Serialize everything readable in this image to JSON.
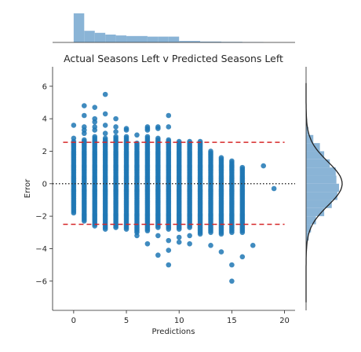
{
  "chart_data": {
    "type": "scatter",
    "title": "Actual Seasons Left v Predicted Seasons Left",
    "xlabel": "Predictions",
    "ylabel": "Error",
    "xlim": [
      -2,
      21
    ],
    "ylim": [
      -7.8,
      7.2
    ],
    "x_ticks": [
      "0",
      "5",
      "10",
      "15",
      "20"
    ],
    "y_ticks": [
      "−6",
      "−4",
      "−2",
      "0",
      "2",
      "4",
      "6"
    ],
    "colors": {
      "points": "#1f77b4",
      "hist": "#8ab4d6",
      "band": "#d62728",
      "zero": "#333333",
      "kde": "#222222"
    },
    "reference_lines": {
      "upper": 2.55,
      "zero": 0,
      "lower": -2.5
    },
    "columns": [
      {
        "x": 0,
        "range": [
          -1.8,
          2.6
        ],
        "outliers": [
          3.6,
          2.8
        ]
      },
      {
        "x": 1,
        "range": [
          -2.3,
          2.7
        ],
        "outliers": [
          4.8,
          4.2,
          3.5,
          3.3,
          3.1
        ]
      },
      {
        "x": 2,
        "range": [
          -2.6,
          2.9
        ],
        "outliers": [
          4.7,
          4.0,
          3.8,
          3.5,
          3.3
        ]
      },
      {
        "x": 3,
        "range": [
          -2.8,
          2.8
        ],
        "outliers": [
          5.5,
          4.3,
          3.6,
          3.1
        ]
      },
      {
        "x": 4,
        "range": [
          -2.7,
          2.9
        ],
        "outliers": [
          4.0,
          3.5,
          3.2
        ]
      },
      {
        "x": 5,
        "range": [
          -2.8,
          2.9
        ],
        "outliers": [
          3.4,
          3.3
        ]
      },
      {
        "x": 6,
        "range": [
          -2.9,
          2.5
        ],
        "outliers": [
          3.0,
          -3.0,
          -3.2
        ]
      },
      {
        "x": 7,
        "range": [
          -2.9,
          2.9
        ],
        "outliers": [
          3.5,
          3.4,
          3.3,
          -3.7
        ]
      },
      {
        "x": 8,
        "range": [
          -2.7,
          2.8
        ],
        "outliers": [
          3.5,
          3.4,
          -3.2,
          -4.4
        ]
      },
      {
        "x": 9,
        "range": [
          -2.8,
          2.7
        ],
        "outliers": [
          4.2,
          3.5,
          -3.5,
          -4.1,
          -5.0
        ]
      },
      {
        "x": 10,
        "range": [
          -2.8,
          2.6
        ],
        "outliers": [
          -3.3,
          -3.6
        ]
      },
      {
        "x": 11,
        "range": [
          -2.7,
          2.6
        ],
        "outliers": [
          -3.2,
          -3.7
        ]
      },
      {
        "x": 12,
        "range": [
          -3.1,
          2.6
        ],
        "outliers": []
      },
      {
        "x": 13,
        "range": [
          -3.0,
          2.0
        ],
        "outliers": [
          -3.8
        ]
      },
      {
        "x": 14,
        "range": [
          -3.1,
          1.6
        ],
        "outliers": [
          -4.2
        ]
      },
      {
        "x": 15,
        "range": [
          -3.0,
          1.4
        ],
        "outliers": [
          -5.0,
          -6.0
        ]
      },
      {
        "x": 16,
        "range": [
          -3.0,
          1.0
        ],
        "outliers": [
          -4.5
        ]
      },
      {
        "x": 17,
        "range": [
          -3.8,
          -3.8
        ],
        "outliers": []
      },
      {
        "x": 18,
        "range": [
          1.1,
          1.1
        ],
        "outliers": []
      },
      {
        "x": 19,
        "range": [
          -0.3,
          -0.3
        ],
        "outliers": []
      }
    ],
    "top_hist": {
      "edges": [
        0,
        1,
        2,
        3,
        4,
        5,
        6,
        7,
        8,
        9,
        10,
        12,
        14,
        16,
        18,
        20
      ],
      "relative_counts": [
        1.0,
        0.4,
        0.33,
        0.27,
        0.24,
        0.22,
        0.22,
        0.2,
        0.2,
        0.2,
        0.05,
        0.03,
        0.02,
        0.01,
        0.0
      ]
    },
    "right_hist": {
      "edges": [
        -4.0,
        -3.5,
        -3.0,
        -2.5,
        -2.0,
        -1.5,
        -1.0,
        -0.5,
        0.0,
        0.5,
        1.0,
        1.5,
        2.0,
        2.5,
        3.0,
        3.5,
        4.0
      ],
      "relative_counts": [
        0.03,
        0.08,
        0.15,
        0.3,
        0.55,
        0.78,
        0.95,
        1.0,
        0.92,
        0.9,
        0.72,
        0.55,
        0.42,
        0.22,
        0.07,
        0.03
      ]
    },
    "kde": {
      "mean": 0,
      "std": 1.35
    }
  }
}
